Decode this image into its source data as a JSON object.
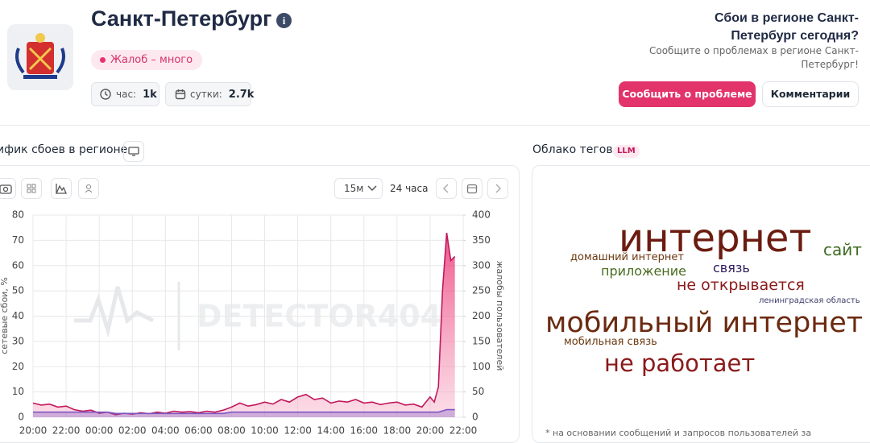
{
  "header": {
    "title": "Санкт-Петербург",
    "badge": "Жалоб – много",
    "stats": [
      {
        "label": "час:",
        "value": "1k"
      },
      {
        "label": "сутки:",
        "value": "2.7k"
      }
    ]
  },
  "sidebar": {
    "question": "Сбои в регионе Санкт-Петербург сегодня?",
    "note": "Сообщите о проблемах в регионе Санкт-Петербург!",
    "buttons": [
      "Сообщить о проблеме",
      "Комментарии"
    ]
  },
  "chart_panel": {
    "title": "ифик сбоев в регионе",
    "interval": "15м",
    "range": "24 часа"
  },
  "chart_data": {
    "type": "line",
    "watermark": "DETECTOR404",
    "ylabel": "сетевые сбои, %",
    "y2label": "жалобы пользователей",
    "x": [
      0,
      0.5,
      1,
      1.5,
      2,
      2.5,
      3,
      3.5,
      4,
      4.5,
      5,
      5.5,
      6,
      6.5,
      7,
      7.5,
      8,
      8.5,
      9,
      9.5,
      10,
      10.5,
      11,
      11.5,
      12,
      12.5,
      13,
      13.5,
      14,
      14.5,
      15,
      15.5,
      16,
      16.5,
      17,
      17.5,
      18,
      18.5,
      19,
      19.5,
      20,
      20.5,
      21,
      21.5,
      22,
      22.5,
      23,
      23.5,
      24,
      24.25,
      24.5,
      24.75,
      25,
      25.25,
      25.5
    ],
    "series": [
      {
        "name": "жалобы пользователей",
        "color": "#c2185b",
        "axis": "y2",
        "values": [
          28,
          24,
          26,
          20,
          22,
          15,
          12,
          14,
          8,
          10,
          5,
          8,
          6,
          9,
          7,
          10,
          8,
          12,
          10,
          11,
          9,
          12,
          10,
          14,
          20,
          28,
          22,
          25,
          30,
          26,
          35,
          30,
          40,
          45,
          35,
          38,
          28,
          32,
          30,
          35,
          28,
          30,
          25,
          28,
          30,
          24,
          26,
          20,
          40,
          30,
          60,
          250,
          365,
          310,
          318
        ]
      },
      {
        "name": "сетевые сбои, %",
        "color": "#7e57c2",
        "values": [
          2,
          2,
          2,
          2,
          2,
          2,
          2,
          2,
          2,
          2,
          1.5,
          1.5,
          1.5,
          1.5,
          1.5,
          1.5,
          1.5,
          1.5,
          1.5,
          1.5,
          1.5,
          1.5,
          1.5,
          1.5,
          2,
          2,
          2,
          2,
          2,
          2,
          2,
          2,
          2,
          2,
          2,
          2,
          2,
          2,
          2,
          2,
          2,
          2,
          2,
          2,
          2,
          2,
          2,
          2,
          2,
          2,
          2,
          2.5,
          3,
          3,
          3
        ]
      }
    ],
    "xlim": [
      0,
      26
    ],
    "xticks": [
      {
        "value": 0,
        "label": "20:00"
      },
      {
        "value": 2,
        "label": "22:00"
      },
      {
        "value": 4,
        "label": "00:00"
      },
      {
        "value": 6,
        "label": "02:00"
      },
      {
        "value": 8,
        "label": "04:00"
      },
      {
        "value": 10,
        "label": "06:00"
      },
      {
        "value": 12,
        "label": "08:00"
      },
      {
        "value": 14,
        "label": "10:00"
      },
      {
        "value": 16,
        "label": "12:00"
      },
      {
        "value": 18,
        "label": "14:00"
      },
      {
        "value": 20,
        "label": "16:00"
      },
      {
        "value": 22,
        "label": "18:00"
      },
      {
        "value": 24,
        "label": "20:00"
      },
      {
        "value": 26,
        "label": "22:00"
      }
    ],
    "ylim": [
      0,
      80
    ],
    "yticks": [
      0,
      10,
      20,
      30,
      40,
      50,
      60,
      70,
      80
    ],
    "y2lim": [
      0,
      400
    ],
    "y2ticks": [
      0,
      50,
      100,
      150,
      200,
      250,
      300,
      350,
      400
    ],
    "grid": true
  },
  "tags": {
    "title": "Облако тегов",
    "badge": "LLM",
    "words": [
      "интернет",
      "сайт",
      "домашний интернет",
      "связь",
      "приложение",
      "не открывается",
      "ленинградская область",
      "мобильный интернет",
      "мобильная связь",
      "не работает"
    ],
    "footnote": "* на основании сообщений и запросов пользователей за"
  }
}
